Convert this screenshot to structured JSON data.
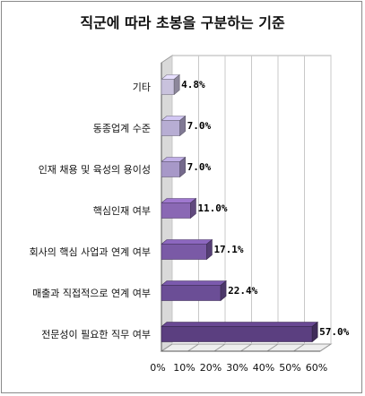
{
  "chart_data": {
    "type": "bar",
    "orientation": "horizontal",
    "title": "직군에 따라 초봉을 구분하는 기준",
    "categories": [
      "기타",
      "동종업계 수준",
      "인재 채용 및 육성의 용이성",
      "핵심인재 여부",
      "회사의 핵심 사업과 연계 여부",
      "매출과 직접적으로 연계 여부",
      "전문성이 필요한 직무 여부"
    ],
    "values": [
      4.8,
      7.0,
      7.0,
      11.0,
      17.1,
      22.4,
      57.0
    ],
    "value_labels": [
      "4.8%",
      "7.0%",
      "7.0%",
      "11.0%",
      "17.1%",
      "22.4%",
      "57.0%"
    ],
    "xlim": [
      0,
      60
    ],
    "xticks": [
      "0%",
      "10%",
      "20%",
      "30%",
      "40%",
      "50%",
      "60%"
    ],
    "bar_colors": [
      "#c9c2dd",
      "#b7add3",
      "#a798c8",
      "#8a68b4",
      "#7a5aa6",
      "#6b4e96",
      "#5b3f80"
    ],
    "grid": true,
    "legend": "none"
  }
}
